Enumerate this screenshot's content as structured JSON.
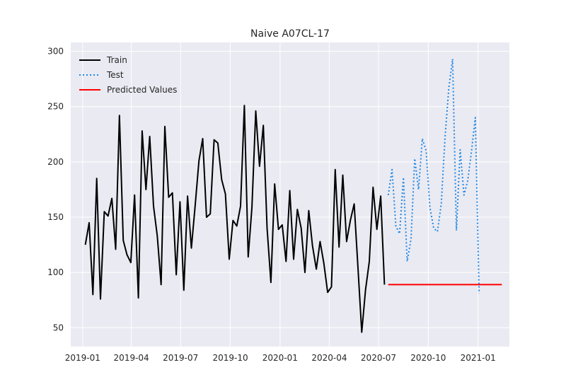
{
  "chart_data": {
    "type": "line",
    "title": "Naive A07CL-17",
    "xlabel": "",
    "ylabel": "",
    "xlim": [
      "2018-12-10",
      "2021-02-28"
    ],
    "ylim": [
      33,
      308
    ],
    "x_ticks": [
      "2019-01",
      "2019-04",
      "2019-07",
      "2019-10",
      "2020-01",
      "2020-04",
      "2020-07",
      "2020-10",
      "2021-01"
    ],
    "y_ticks": [
      50,
      100,
      150,
      200,
      250,
      300
    ],
    "grid": true,
    "legend_position": "top-left",
    "series": [
      {
        "name": "Train",
        "color": "#000000",
        "style": "solid",
        "x": [
          "2019-01-06",
          "2019-01-13",
          "2019-01-20",
          "2019-01-27",
          "2019-02-03",
          "2019-02-10",
          "2019-02-17",
          "2019-02-24",
          "2019-03-03",
          "2019-03-10",
          "2019-03-17",
          "2019-03-24",
          "2019-03-31",
          "2019-04-07",
          "2019-04-14",
          "2019-04-21",
          "2019-04-28",
          "2019-05-05",
          "2019-05-12",
          "2019-05-19",
          "2019-05-26",
          "2019-06-02",
          "2019-06-09",
          "2019-06-16",
          "2019-06-23",
          "2019-06-30",
          "2019-07-07",
          "2019-07-14",
          "2019-07-21",
          "2019-07-28",
          "2019-08-04",
          "2019-08-11",
          "2019-08-18",
          "2019-08-25",
          "2019-09-01",
          "2019-09-08",
          "2019-09-15",
          "2019-09-22",
          "2019-09-29",
          "2019-10-06",
          "2019-10-13",
          "2019-10-20",
          "2019-10-27",
          "2019-11-03",
          "2019-11-10",
          "2019-11-17",
          "2019-11-24",
          "2019-12-01",
          "2019-12-08",
          "2019-12-15",
          "2019-12-22",
          "2019-12-29",
          "2020-01-05",
          "2020-01-12",
          "2020-01-19",
          "2020-01-26",
          "2020-02-02",
          "2020-02-09",
          "2020-02-16",
          "2020-02-23",
          "2020-03-01",
          "2020-03-08",
          "2020-03-15",
          "2020-03-22",
          "2020-03-29",
          "2020-04-05",
          "2020-04-12",
          "2020-04-19",
          "2020-04-26",
          "2020-05-03",
          "2020-05-10",
          "2020-05-17",
          "2020-05-24",
          "2020-05-31",
          "2020-06-07",
          "2020-06-14",
          "2020-06-21",
          "2020-06-28",
          "2020-07-05",
          "2020-07-12"
        ],
        "values": [
          125,
          145,
          80,
          185,
          76,
          155,
          151,
          167,
          121,
          242,
          129,
          116,
          109,
          170,
          77,
          228,
          175,
          223,
          160,
          133,
          89,
          232,
          168,
          172,
          98,
          164,
          84,
          169,
          122,
          160,
          201,
          221,
          150,
          153,
          220,
          217,
          184,
          171,
          112,
          147,
          142,
          160,
          251,
          114,
          159,
          246,
          196,
          233,
          140,
          91,
          180,
          139,
          143,
          110,
          174,
          112,
          157,
          140,
          100,
          156,
          124,
          103,
          128,
          108,
          82,
          87,
          193,
          123,
          188,
          128,
          147,
          162,
          105,
          46,
          84,
          110,
          177,
          139,
          169,
          89
        ]
      },
      {
        "name": "Test",
        "color": "#1e88e5",
        "style": "dotted",
        "x": [
          "2020-07-19",
          "2020-07-26",
          "2020-08-02",
          "2020-08-09",
          "2020-08-16",
          "2020-08-23",
          "2020-08-30",
          "2020-09-06",
          "2020-09-13",
          "2020-09-20",
          "2020-09-27",
          "2020-10-04",
          "2020-10-11",
          "2020-10-18",
          "2020-10-25",
          "2020-11-01",
          "2020-11-08",
          "2020-11-15",
          "2020-11-22",
          "2020-11-29",
          "2020-12-06",
          "2020-12-13",
          "2020-12-20",
          "2020-12-27",
          "2021-01-03"
        ],
        "values": [
          170,
          193,
          142,
          135,
          186,
          110,
          130,
          203,
          175,
          221,
          210,
          159,
          140,
          137,
          162,
          222,
          267,
          293,
          138,
          211,
          170,
          183,
          210,
          240,
          81
        ]
      },
      {
        "name": "Predicted Values",
        "color": "#ff0000",
        "style": "solid",
        "x": [
          "2020-07-19",
          "2021-02-14"
        ],
        "values": [
          89,
          89
        ]
      }
    ]
  }
}
